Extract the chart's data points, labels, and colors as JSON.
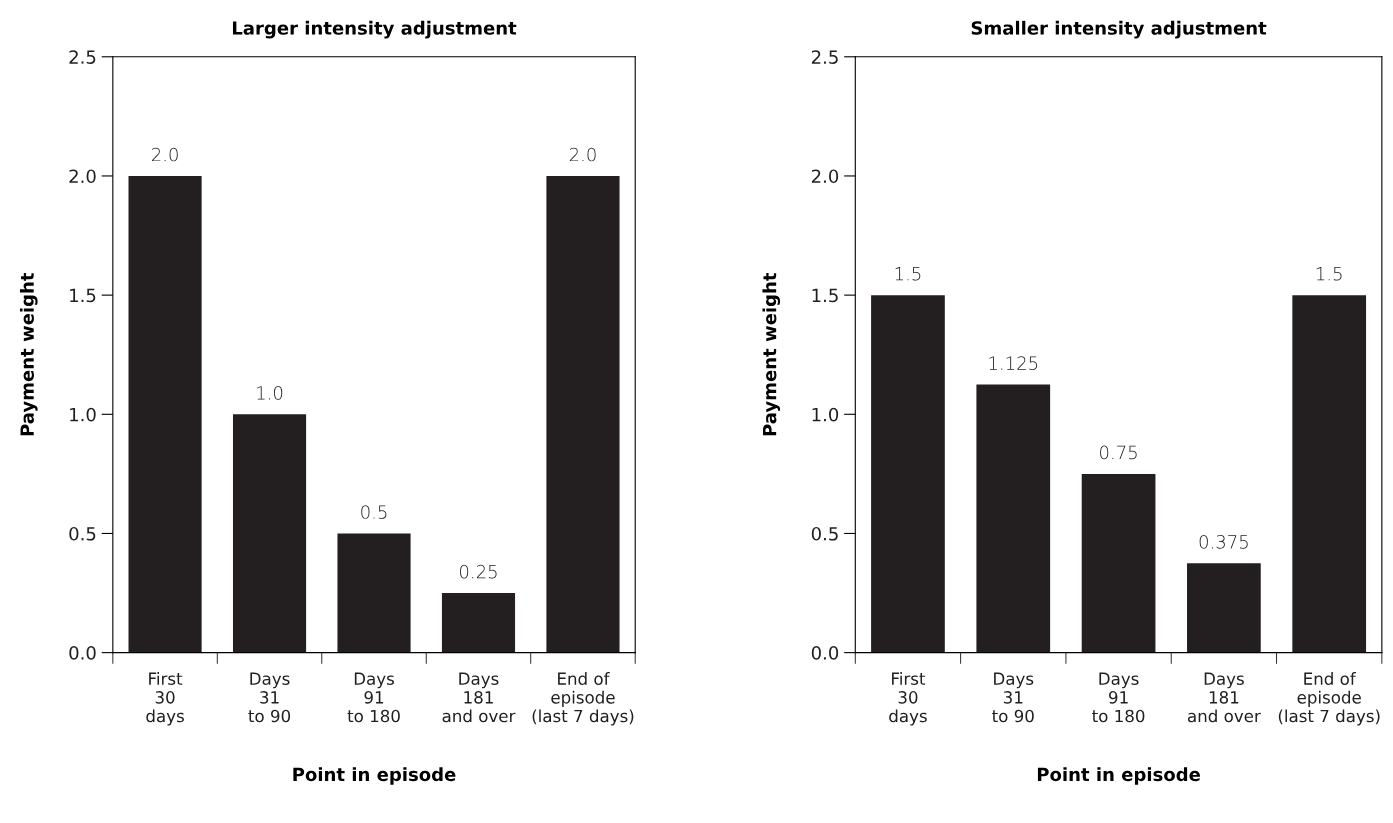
{
  "chart_data": [
    {
      "type": "bar",
      "title": "Larger intensity adjustment",
      "xlabel": "Point in episode",
      "ylabel": "Payment weight",
      "categories": [
        "First\n30\ndays",
        "Days\n31\nto 90",
        "Days\n91\nto 180",
        "Days\n181\nand over",
        "End of\nepisode\n(last 7 days)"
      ],
      "values": [
        2.0,
        1.0,
        0.5,
        0.25,
        2.0
      ],
      "value_labels": [
        "2.0",
        "1.0",
        "0.5",
        "0.25",
        "2.0"
      ],
      "color": "#231f20",
      "ylim": [
        0,
        2.5
      ],
      "yticks": [
        {
          "value": 0,
          "label": "0.0"
        },
        {
          "value": 0.5,
          "label": "0.5"
        },
        {
          "value": 1,
          "label": "1.0"
        },
        {
          "value": 1.5,
          "label": "1.5"
        },
        {
          "value": 2,
          "label": "2.0"
        },
        {
          "value": 2.5,
          "label": "2.5"
        }
      ],
      "grid": false,
      "legend": false
    },
    {
      "type": "bar",
      "title": "Smaller intensity adjustment",
      "xlabel": "Point in episode",
      "ylabel": "Payment weight",
      "categories": [
        "First\n30\ndays",
        "Days\n31\nto 90",
        "Days\n91\nto 180",
        "Days\n181\nand over",
        "End of\nepisode\n(last 7 days)"
      ],
      "values": [
        1.5,
        1.125,
        0.75,
        0.375,
        1.5
      ],
      "value_labels": [
        "1.5",
        "1.125",
        "0.75",
        "0.375",
        "1.5"
      ],
      "color": "#231f20",
      "ylim": [
        0,
        2.5
      ],
      "yticks": [
        {
          "value": 0,
          "label": "0.0"
        },
        {
          "value": 0.5,
          "label": "0.5"
        },
        {
          "value": 1,
          "label": "1.0"
        },
        {
          "value": 1.5,
          "label": "1.5"
        },
        {
          "value": 2,
          "label": "2.0"
        },
        {
          "value": 2.5,
          "label": "2.5"
        }
      ],
      "grid": false,
      "legend": false
    }
  ]
}
